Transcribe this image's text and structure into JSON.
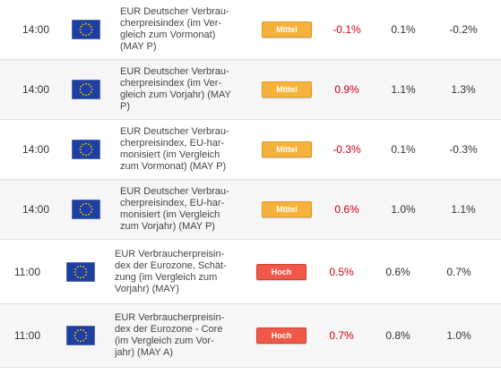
{
  "colors": {
    "actual_text": "#d0021b",
    "medium_badge": "#f7b23c",
    "high_badge": "#ef5a48",
    "eu_flag_blue": "#1f3fa0",
    "eu_flag_stars": "#ffcc00"
  },
  "icons": {
    "flag": "eu-flag-icon"
  },
  "events": [
    {
      "time": "14:00",
      "name": "EUR Deutscher Verbraucherpreisindex (im Vergleich zum Vormonat) (MAY P)",
      "lines": [
        "EUR Deutscher Verbrau-",
        "cherpreisindex (im Ver-",
        "gleich zum Vormonat)",
        "(MAY P)"
      ],
      "importance": "Mittel",
      "actual": "-0.1%",
      "forecast": "0.1%",
      "previous": "-0.2%"
    },
    {
      "time": "14:00",
      "name": "EUR Deutscher Verbraucherpreisindex (im Vergleich zum Vorjahr) (MAY P)",
      "lines": [
        "EUR Deutscher Verbrau-",
        "cherpreisindex (im Ver-",
        "gleich zum Vorjahr) (MAY",
        "P)"
      ],
      "importance": "Mittel",
      "actual": "0.9%",
      "forecast": "1.1%",
      "previous": "1.3%"
    },
    {
      "time": "14:00",
      "name": "EUR Deutscher Verbraucherpreisindex, EU-harmonisiert (im Vergleich zum Vormonat) (MAY P)",
      "lines": [
        "EUR Deutscher Verbrau-",
        "cherpreisindex, EU-har-",
        "monisiert (im Vergleich",
        "zum Vormonat) (MAY P)"
      ],
      "importance": "Mittel",
      "actual": "-0.3%",
      "forecast": "0.1%",
      "previous": "-0.3%"
    },
    {
      "time": "14:00",
      "name": "EUR Deutscher Verbraucherpreisindex, EU-harmonisiert (im Vergleich zum Vorjahr) (MAY P)",
      "lines": [
        "EUR Deutscher Verbrau-",
        "cherpreisindex, EU-har-",
        "monisiert (im Vergleich",
        "zum Vorjahr) (MAY P)"
      ],
      "importance": "Mittel",
      "actual": "0.6%",
      "forecast": "1.0%",
      "previous": "1.1%"
    },
    {
      "time": "11:00",
      "name": "EUR Verbraucherpreisindex der Eurozone, Schätzung (im Vergleich zum Vorjahr) (MAY)",
      "lines": [
        "EUR Verbraucherpreisin-",
        "dex der Eurozone, Schät-",
        "zung (im Vergleich zum",
        "Vorjahr) (MAY)"
      ],
      "importance": "Hoch",
      "actual": "0.5%",
      "forecast": "0.6%",
      "previous": "0.7%"
    },
    {
      "time": "11:00",
      "name": "EUR Verbraucherpreisindex der Eurozone - Core (im Vergleich zum Vorjahr) (MAY A)",
      "lines": [
        "EUR Verbraucherpreisin-",
        "dex der Eurozone - Core",
        "(im Vergleich zum Vor-",
        "jahr) (MAY A)"
      ],
      "importance": "Hoch",
      "actual": "0.7%",
      "forecast": "0.8%",
      "previous": "1.0%"
    }
  ]
}
